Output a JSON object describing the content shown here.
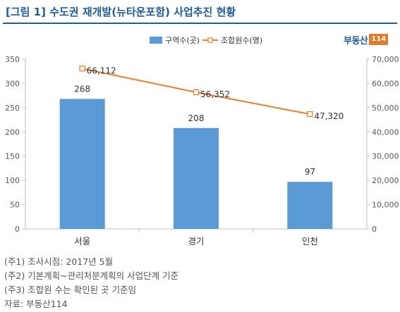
{
  "title": "[그림 1] 수도권 재개발(뉴타운포함) 사업추진 현황",
  "logo": {
    "text": "부동산",
    "number": "114"
  },
  "notes": [
    "(주1) 조사시점: 2017년 5월",
    "(주2) 기본계획~관리처분계획의 사업단계 기준",
    "(주3) 조합원 수는 확인된 곳 기준임",
    "자료: 부동산114"
  ],
  "colors": {
    "bar": "#5b9bd5",
    "line": "#ed7d31",
    "title": "#1f5c99"
  },
  "chart_data": {
    "type": "bar+line",
    "categories": [
      "서울",
      "경기",
      "인천"
    ],
    "series": [
      {
        "name": "구역수(곳)",
        "type": "bar",
        "axis": "left",
        "values": [
          268,
          208,
          97
        ],
        "labels": [
          "268",
          "208",
          "97"
        ]
      },
      {
        "name": "조합원수(명)",
        "type": "line",
        "axis": "right",
        "values": [
          66112,
          56352,
          47320
        ],
        "labels": [
          "66,112",
          "56,352",
          "47,320"
        ]
      }
    ],
    "y_left": {
      "min": 0,
      "max": 350,
      "ticks": [
        "0",
        "50",
        "100",
        "150",
        "200",
        "250",
        "300",
        "350"
      ]
    },
    "y_right": {
      "min": 0,
      "max": 70000,
      "ticks": [
        "0",
        "10,000",
        "20,000",
        "30,000",
        "40,000",
        "50,000",
        "60,000",
        "70,000"
      ]
    },
    "legend_position": "top",
    "grid": false
  }
}
